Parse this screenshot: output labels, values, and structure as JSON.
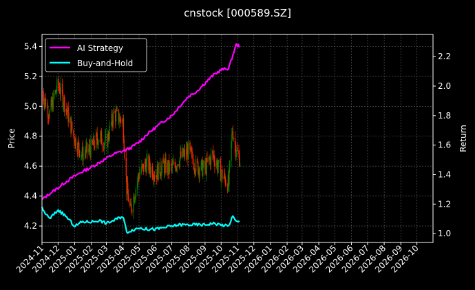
{
  "chart_data": {
    "type": "line",
    "title": "cnstock [000589.SZ]",
    "ylabel_left": "Price",
    "ylabel_right": "Return",
    "xlabel": "",
    "ylim_left": [
      4.09,
      5.48
    ],
    "ylim_right": [
      0.94,
      2.35
    ],
    "yticks_left": [
      4.2,
      4.4,
      4.6,
      4.8,
      5.0,
      5.2,
      5.4
    ],
    "yticks_right": [
      1.0,
      1.2,
      1.4,
      1.6,
      1.8,
      2.0,
      2.2
    ],
    "xtick_labels": [
      "2024-11",
      "2024-12",
      "2025-01",
      "2025-02",
      "2025-03",
      "2025-04",
      "2025-05",
      "2025-06",
      "2025-07",
      "2025-08",
      "2025-09",
      "2025-10",
      "2025-11",
      "2025-12",
      "2026-01",
      "2026-02",
      "2026-03",
      "2026-04",
      "2026-05",
      "2026-06",
      "2026-07",
      "2026-08",
      "2026-09",
      "2026-10"
    ],
    "xlim": [
      "2024-11-01",
      "2026-10-31"
    ],
    "grid": true,
    "legend_position": "top-left",
    "colors": {
      "background": "#000000",
      "ai_strategy": "#ff00ff",
      "buy_and_hold": "#00ffff",
      "candle_up": "#008000",
      "candle_down": "#ff2000",
      "grid": "#666666"
    },
    "price_series": {
      "dates": [
        "2024-11-01",
        "2024-11-15",
        "2024-12-01",
        "2024-12-15",
        "2025-01-01",
        "2025-01-15",
        "2025-02-01",
        "2025-02-15",
        "2025-03-01",
        "2025-03-15",
        "2025-04-01",
        "2025-04-08",
        "2025-04-15",
        "2025-05-01",
        "2025-05-15",
        "2025-06-01",
        "2025-06-15",
        "2025-07-01",
        "2025-07-15",
        "2025-08-01",
        "2025-08-15",
        "2025-09-01",
        "2025-09-15",
        "2025-10-01",
        "2025-10-15",
        "2025-10-22",
        "2025-10-29",
        "2025-11-05"
      ],
      "close": [
        5.1,
        4.95,
        5.15,
        5.0,
        4.78,
        4.68,
        4.72,
        4.8,
        4.75,
        4.95,
        4.9,
        4.45,
        4.3,
        4.55,
        4.62,
        4.55,
        4.6,
        4.58,
        4.65,
        4.7,
        4.6,
        4.58,
        4.68,
        4.55,
        4.48,
        4.85,
        4.7,
        4.65
      ]
    },
    "series": [
      {
        "name": "AI Strategy",
        "dates": [
          "2024-11-01",
          "2024-11-15",
          "2024-12-01",
          "2024-12-15",
          "2025-01-01",
          "2025-01-15",
          "2025-02-01",
          "2025-02-15",
          "2025-03-01",
          "2025-03-15",
          "2025-04-01",
          "2025-04-15",
          "2025-05-01",
          "2025-05-15",
          "2025-06-01",
          "2025-06-15",
          "2025-07-01",
          "2025-07-15",
          "2025-08-01",
          "2025-08-15",
          "2025-09-01",
          "2025-09-15",
          "2025-10-01",
          "2025-10-15",
          "2025-10-22",
          "2025-10-29",
          "2025-11-05"
        ],
        "values": [
          1.23,
          1.27,
          1.31,
          1.35,
          1.39,
          1.42,
          1.45,
          1.48,
          1.51,
          1.54,
          1.56,
          1.58,
          1.62,
          1.67,
          1.72,
          1.76,
          1.8,
          1.86,
          1.93,
          1.96,
          2.02,
          2.07,
          2.11,
          2.12,
          2.2,
          2.28,
          2.27
        ]
      },
      {
        "name": "Buy-and-Hold",
        "dates": [
          "2024-11-01",
          "2024-11-15",
          "2024-12-01",
          "2024-12-15",
          "2025-01-01",
          "2025-01-15",
          "2025-02-01",
          "2025-02-15",
          "2025-03-01",
          "2025-03-15",
          "2025-04-01",
          "2025-04-08",
          "2025-04-15",
          "2025-05-01",
          "2025-05-15",
          "2025-06-01",
          "2025-06-15",
          "2025-07-01",
          "2025-07-15",
          "2025-08-01",
          "2025-08-15",
          "2025-09-01",
          "2025-09-15",
          "2025-10-01",
          "2025-10-15",
          "2025-10-22",
          "2025-10-29",
          "2025-11-05"
        ],
        "values": [
          1.17,
          1.1,
          1.16,
          1.12,
          1.05,
          1.08,
          1.08,
          1.09,
          1.07,
          1.09,
          1.12,
          1.01,
          1.02,
          1.04,
          1.03,
          1.03,
          1.04,
          1.05,
          1.06,
          1.06,
          1.06,
          1.06,
          1.07,
          1.06,
          1.05,
          1.12,
          1.08,
          1.08
        ]
      }
    ]
  }
}
